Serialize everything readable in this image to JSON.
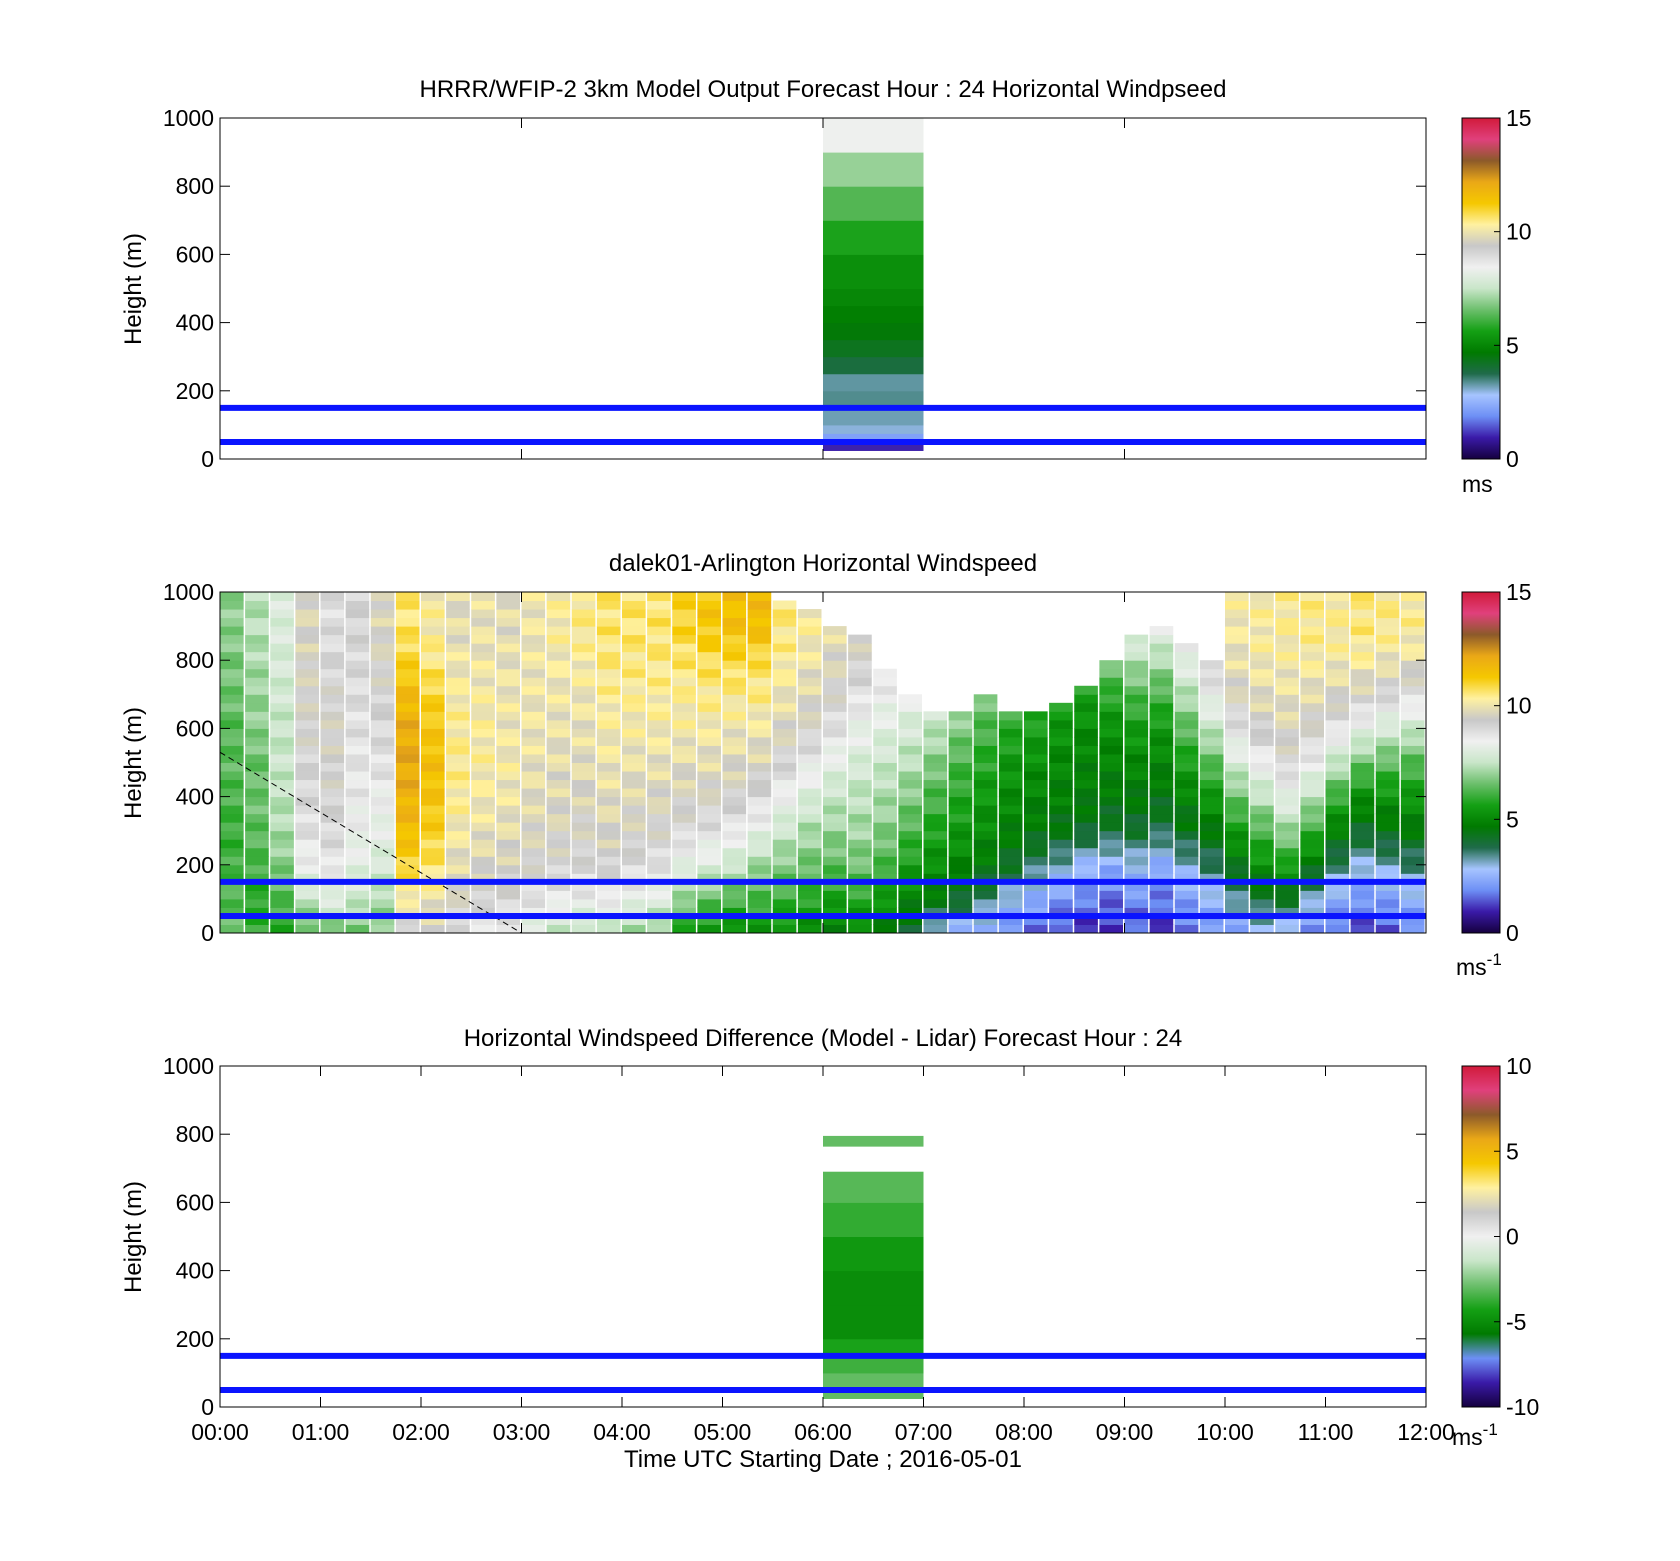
{
  "colors": {
    "ref_line": "#0a14ff",
    "speed_scale": [
      "#15003f",
      "#3a1aa8",
      "#6d8ff5",
      "#a6c4ff",
      "#1f6b4a",
      "#007a00",
      "#14a014",
      "#6cbf6c",
      "#c9e6c9",
      "#f0f0f0",
      "#c8c8c8",
      "#fff1a0",
      "#f5c800",
      "#eaa817",
      "#8c5a2a",
      "#e0407c",
      "#d11a3a"
    ],
    "diff_scale": [
      "#15003f",
      "#3a1aa8",
      "#6d8ff5",
      "#007a00",
      "#14a014",
      "#6cbf6c",
      "#c9e6c9",
      "#f0f0f0",
      "#c8c8c8",
      "#fff1a0",
      "#f5c800",
      "#eaa817",
      "#8c5a2a",
      "#e0407c",
      "#d11a3a"
    ]
  },
  "chart_data": [
    {
      "type": "heatmap",
      "title": "HRRR/WFIP-2 3km Model Output   Forecast Hour : 24 Horizontal Windpseed",
      "ylabel": "Height (m)",
      "xlabel": "",
      "xlim": [
        0,
        12
      ],
      "ylim": [
        0,
        1000
      ],
      "yticks": [
        "0",
        "200",
        "400",
        "600",
        "800",
        "1000"
      ],
      "xticks_shown": false,
      "colorbar": {
        "range": [
          0,
          15
        ],
        "ticks": [
          "0",
          "5",
          "10",
          "15"
        ],
        "unit": "ms"
      },
      "reference_lines_m": [
        50,
        150
      ],
      "columns": [
        {
          "x_start_h": 6.0,
          "x_end_h": 7.0,
          "cells": [
            {
              "z0": 25,
              "z1": 50,
              "v": 1.0
            },
            {
              "z0": 50,
              "z1": 75,
              "v": 2.2
            },
            {
              "z0": 75,
              "z1": 100,
              "v": 3.0
            },
            {
              "z0": 100,
              "z1": 150,
              "v": 3.2
            },
            {
              "z0": 150,
              "z1": 200,
              "v": 3.4
            },
            {
              "z0": 200,
              "z1": 250,
              "v": 3.3
            },
            {
              "z0": 250,
              "z1": 300,
              "v": 3.9
            },
            {
              "z0": 300,
              "z1": 350,
              "v": 4.3
            },
            {
              "z0": 350,
              "z1": 400,
              "v": 4.6
            },
            {
              "z0": 400,
              "z1": 450,
              "v": 4.8
            },
            {
              "z0": 450,
              "z1": 500,
              "v": 5.0
            },
            {
              "z0": 500,
              "z1": 600,
              "v": 5.2
            },
            {
              "z0": 600,
              "z1": 700,
              "v": 5.7
            },
            {
              "z0": 700,
              "z1": 800,
              "v": 6.3
            },
            {
              "z0": 800,
              "z1": 900,
              "v": 7.0
            },
            {
              "z0": 900,
              "z1": 1000,
              "v": 8.4
            }
          ]
        }
      ]
    },
    {
      "type": "heatmap",
      "title": "dalek01-Arlington  Horizontal Windspeed",
      "ylabel": "Height (m)",
      "xlabel": "",
      "xlim": [
        0,
        12
      ],
      "ylim": [
        0,
        1000
      ],
      "yticks": [
        "0",
        "200",
        "400",
        "600",
        "800",
        "1000"
      ],
      "xticks_shown": false,
      "colorbar": {
        "range": [
          0,
          15
        ],
        "ticks": [
          "0",
          "5",
          "10",
          "15"
        ],
        "unit": "ms",
        "unit_exp": "-1"
      },
      "reference_lines_m": [
        50,
        150
      ],
      "cloud_base_line": {
        "style": "dashed",
        "x_h": [
          0.0,
          3.0
        ],
        "z_m": [
          530,
          0
        ]
      },
      "column_width_h": 0.25,
      "columns_x_start_h": [
        0.0,
        0.25,
        0.5,
        0.75,
        1.0,
        1.25,
        1.5,
        1.75,
        2.0,
        2.25,
        2.5,
        2.75,
        3.0,
        3.25,
        3.5,
        3.75,
        4.0,
        4.25,
        4.5,
        4.75,
        5.0,
        5.25,
        5.5,
        5.75,
        6.0,
        6.25,
        6.5,
        6.75,
        7.0,
        7.25,
        7.5,
        7.75,
        8.0,
        8.25,
        8.5,
        8.75,
        9.0,
        9.25,
        9.5,
        9.75,
        10.0,
        10.25,
        10.5,
        10.75,
        11.0,
        11.25,
        11.5,
        11.75
      ],
      "data_top_m": [
        1000,
        1000,
        1000,
        1000,
        1000,
        1000,
        1000,
        1000,
        1000,
        1000,
        1000,
        1000,
        1000,
        1000,
        1000,
        1000,
        1000,
        1000,
        1000,
        1000,
        1000,
        1000,
        960,
        940,
        900,
        860,
        760,
        700,
        640,
        640,
        680,
        640,
        640,
        660,
        720,
        780,
        860,
        880,
        840,
        800,
        1000,
        1000,
        1000,
        1000,
        1000,
        1000,
        1000,
        1000
      ],
      "profile_values_ms": [
        [
          6.5,
          6.3,
          6.1,
          6.0,
          6.2,
          6.4,
          6.3,
          6.6,
          6.7,
          6.9
        ],
        [
          6.0,
          5.8,
          6.2,
          6.4,
          6.6,
          6.5,
          6.9,
          7.0,
          7.2,
          7.3
        ],
        [
          5.8,
          6.3,
          6.8,
          7.2,
          7.4,
          7.6,
          7.5,
          7.7,
          7.8,
          7.9
        ],
        [
          6.2,
          7.5,
          8.4,
          8.8,
          9.0,
          9.1,
          9.3,
          9.4,
          9.5,
          9.6
        ],
        [
          6.5,
          8.0,
          8.7,
          9.0,
          9.2,
          9.3,
          9.4,
          9.2,
          9.0,
          8.9
        ],
        [
          6.6,
          7.6,
          8.1,
          8.4,
          8.6,
          8.7,
          8.8,
          8.9,
          9.0,
          9.1
        ],
        [
          6.8,
          7.2,
          7.8,
          8.2,
          8.5,
          8.8,
          9.0,
          9.2,
          9.4,
          9.6
        ],
        [
          9.0,
          10.2,
          11.0,
          11.6,
          11.9,
          12.1,
          12.0,
          11.6,
          11.0,
          10.6
        ],
        [
          9.4,
          10.0,
          10.6,
          11.1,
          11.4,
          11.5,
          11.3,
          11.0,
          10.5,
          10.2
        ],
        [
          8.8,
          9.4,
          9.8,
          10.1,
          10.3,
          10.4,
          10.3,
          10.2,
          10.0,
          9.8
        ],
        [
          8.6,
          9.2,
          9.6,
          9.9,
          10.1,
          10.2,
          10.2,
          10.1,
          10.0,
          9.9
        ],
        [
          8.5,
          9.1,
          9.5,
          9.8,
          10.0,
          10.1,
          10.0,
          10.0,
          9.9,
          9.8
        ],
        [
          7.9,
          8.8,
          9.3,
          9.6,
          9.8,
          9.9,
          10.0,
          10.0,
          10.0,
          10.0
        ],
        [
          7.5,
          8.6,
          9.2,
          9.5,
          9.7,
          9.8,
          9.9,
          10.0,
          10.1,
          10.2
        ],
        [
          7.2,
          8.5,
          9.1,
          9.4,
          9.6,
          9.8,
          9.9,
          10.0,
          10.2,
          10.4
        ],
        [
          7.3,
          8.6,
          9.2,
          9.6,
          9.8,
          10.0,
          10.1,
          10.3,
          10.5,
          10.6
        ],
        [
          7.0,
          8.3,
          9.0,
          9.4,
          9.7,
          9.9,
          10.1,
          10.3,
          10.5,
          10.6
        ],
        [
          6.8,
          8.0,
          8.8,
          9.3,
          9.6,
          9.9,
          10.1,
          10.3,
          10.5,
          10.6
        ],
        [
          5.6,
          7.0,
          8.2,
          9.0,
          9.5,
          9.8,
          10.1,
          10.3,
          10.6,
          11.0
        ],
        [
          5.2,
          6.5,
          7.9,
          8.8,
          9.4,
          9.8,
          10.1,
          10.4,
          10.8,
          11.3
        ],
        [
          5.0,
          6.2,
          7.6,
          8.6,
          9.3,
          9.7,
          10.0,
          10.4,
          10.9,
          11.5
        ],
        [
          5.3,
          6.2,
          7.1,
          8.2,
          9.0,
          9.6,
          10.0,
          10.4,
          10.8,
          11.6
        ],
        [
          5.2,
          6.0,
          6.8,
          7.6,
          8.4,
          9.1,
          9.6,
          10.0,
          10.3,
          10.5
        ],
        [
          5.0,
          5.8,
          6.6,
          7.2,
          7.9,
          8.6,
          9.3,
          9.7,
          10.0,
          10.2
        ],
        [
          4.8,
          5.6,
          6.4,
          7.0,
          7.5,
          8.1,
          8.8,
          9.3,
          9.6,
          9.9
        ],
        [
          4.9,
          5.8,
          6.6,
          7.1,
          7.4,
          7.8,
          8.3,
          8.8,
          9.3,
          9.6
        ],
        [
          4.6,
          5.4,
          6.2,
          6.8,
          7.2,
          7.6,
          8.0,
          8.5,
          8.9,
          9.3
        ],
        [
          4.0,
          4.9,
          5.6,
          6.2,
          6.8,
          7.3,
          7.8,
          8.3,
          8.8,
          9.2
        ],
        [
          2.6,
          4.6,
          5.2,
          5.7,
          6.2,
          6.8,
          7.4,
          8.0,
          8.6,
          9.0
        ],
        [
          2.4,
          4.2,
          4.9,
          5.4,
          5.8,
          6.2,
          6.8,
          7.4,
          8.0,
          8.6
        ],
        [
          2.2,
          3.6,
          4.6,
          5.1,
          5.4,
          5.8,
          6.2,
          6.8,
          7.4,
          8.2
        ],
        [
          1.8,
          2.8,
          4.2,
          4.8,
          5.1,
          5.4,
          5.8,
          6.4,
          7.2,
          8.0
        ],
        [
          1.6,
          2.4,
          3.6,
          4.6,
          4.9,
          5.2,
          5.6,
          6.2,
          7.0,
          7.8
        ],
        [
          1.3,
          2.0,
          3.1,
          4.4,
          4.8,
          5.0,
          5.3,
          5.8,
          6.6,
          7.6
        ],
        [
          1.0,
          1.8,
          2.6,
          4.2,
          4.7,
          4.9,
          5.1,
          5.6,
          6.4,
          7.4
        ],
        [
          1.2,
          1.6,
          2.5,
          4.0,
          4.6,
          4.9,
          5.2,
          5.9,
          6.8,
          7.8
        ],
        [
          1.4,
          1.9,
          2.8,
          4.1,
          4.6,
          5.0,
          5.5,
          6.3,
          7.3,
          8.2
        ],
        [
          1.1,
          1.7,
          2.4,
          3.8,
          4.5,
          4.9,
          5.4,
          6.2,
          7.2,
          8.3
        ],
        [
          1.6,
          2.2,
          3.0,
          4.3,
          4.9,
          5.6,
          6.4,
          7.3,
          8.2,
          9.0
        ],
        [
          1.9,
          2.6,
          3.6,
          4.6,
          5.4,
          6.4,
          7.5,
          8.5,
          9.3,
          9.8
        ],
        [
          2.2,
          3.4,
          4.5,
          5.5,
          6.6,
          7.8,
          8.8,
          9.5,
          9.9,
          10.1
        ],
        [
          2.6,
          4.0,
          5.2,
          6.2,
          7.4,
          8.5,
          9.3,
          9.8,
          10.1,
          10.2
        ],
        [
          2.4,
          4.2,
          5.6,
          7.0,
          8.2,
          9.1,
          9.6,
          9.9,
          10.1,
          10.3
        ],
        [
          1.9,
          3.2,
          4.6,
          6.0,
          7.4,
          8.5,
          9.3,
          9.8,
          10.2,
          10.4
        ],
        [
          1.5,
          2.4,
          3.6,
          4.8,
          6.0,
          7.5,
          8.8,
          9.6,
          10.1,
          10.3
        ],
        [
          1.2,
          2.0,
          3.0,
          4.2,
          5.2,
          6.6,
          8.2,
          9.4,
          10.2,
          10.5
        ],
        [
          1.4,
          2.2,
          3.2,
          4.4,
          5.3,
          6.4,
          7.8,
          9.1,
          10.0,
          10.4
        ],
        [
          1.7,
          2.5,
          3.5,
          4.6,
          5.4,
          6.3,
          7.6,
          8.9,
          9.9,
          10.3
        ]
      ],
      "profile_heights_m": [
        0,
        100,
        200,
        300,
        400,
        500,
        600,
        700,
        800,
        900
      ]
    },
    {
      "type": "heatmap",
      "title": "Horizontal Windspeed Difference (Model - Lidar) Forecast Hour : 24",
      "ylabel": "Height (m)",
      "xlabel": "Time UTC  Starting Date ; 2016-05-01",
      "xlim": [
        0,
        12
      ],
      "ylim": [
        0,
        1000
      ],
      "xticks": [
        "00:00",
        "01:00",
        "02:00",
        "03:00",
        "04:00",
        "05:00",
        "06:00",
        "07:00",
        "08:00",
        "09:00",
        "10:00",
        "11:00",
        "12:00"
      ],
      "yticks": [
        "0",
        "200",
        "400",
        "600",
        "800",
        "1000"
      ],
      "colorbar": {
        "range": [
          -10,
          10
        ],
        "ticks": [
          "-10",
          "-5",
          "0",
          "5",
          "10"
        ],
        "unit": "ms",
        "unit_exp": "-1"
      },
      "reference_lines_m": [
        50,
        150
      ],
      "columns": [
        {
          "x_start_h": 6.0,
          "x_end_h": 7.0,
          "cells": [
            {
              "z0": 25,
              "z1": 100,
              "v": -3.0
            },
            {
              "z0": 100,
              "z1": 150,
              "v": -3.6
            },
            {
              "z0": 150,
              "z1": 200,
              "v": -4.2
            },
            {
              "z0": 200,
              "z1": 300,
              "v": -5.0
            },
            {
              "z0": 300,
              "z1": 400,
              "v": -5.0
            },
            {
              "z0": 400,
              "z1": 500,
              "v": -4.6
            },
            {
              "z0": 500,
              "z1": 600,
              "v": -3.8
            },
            {
              "z0": 600,
              "z1": 690,
              "v": -3.2
            },
            {
              "z0": 765,
              "z1": 795,
              "v": -3.0
            }
          ]
        }
      ]
    }
  ]
}
